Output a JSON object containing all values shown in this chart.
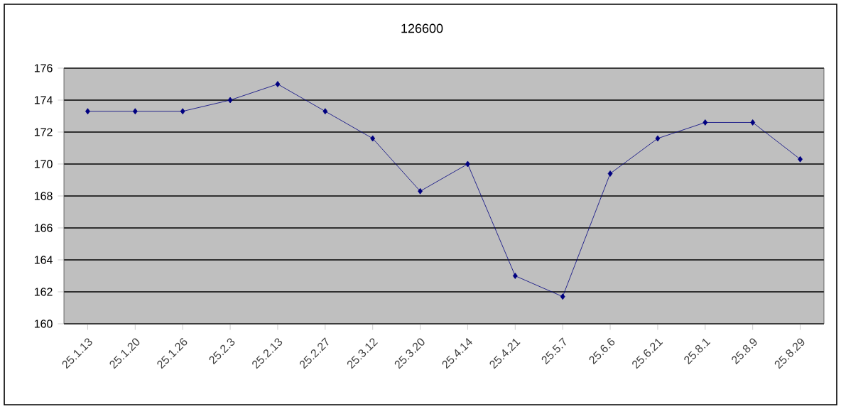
{
  "chart_data": {
    "type": "line",
    "title": "126600",
    "categories": [
      "25.1.13",
      "25.1.20",
      "25.1.26",
      "25.2.3",
      "25.2.13",
      "25.2.27",
      "25.3.12",
      "25.3.20",
      "25.4.14",
      "25.4.21",
      "25.5.7",
      "25.6.6",
      "25.6.21",
      "25.8.1",
      "25.8.9",
      "25.8.29"
    ],
    "series": [
      {
        "color": "#000080",
        "values": [
          173.3,
          173.3,
          173.3,
          174,
          175,
          173.3,
          171.6,
          168.3,
          170,
          163,
          161.7,
          169.4,
          171.6,
          172.6,
          172.6,
          170.3
        ]
      }
    ],
    "ylim": [
      160,
      176
    ],
    "yticks": [
      160,
      162,
      164,
      166,
      168,
      170,
      172,
      174,
      176
    ],
    "grid": "y",
    "marker": "diamond",
    "line_style": "solid"
  }
}
